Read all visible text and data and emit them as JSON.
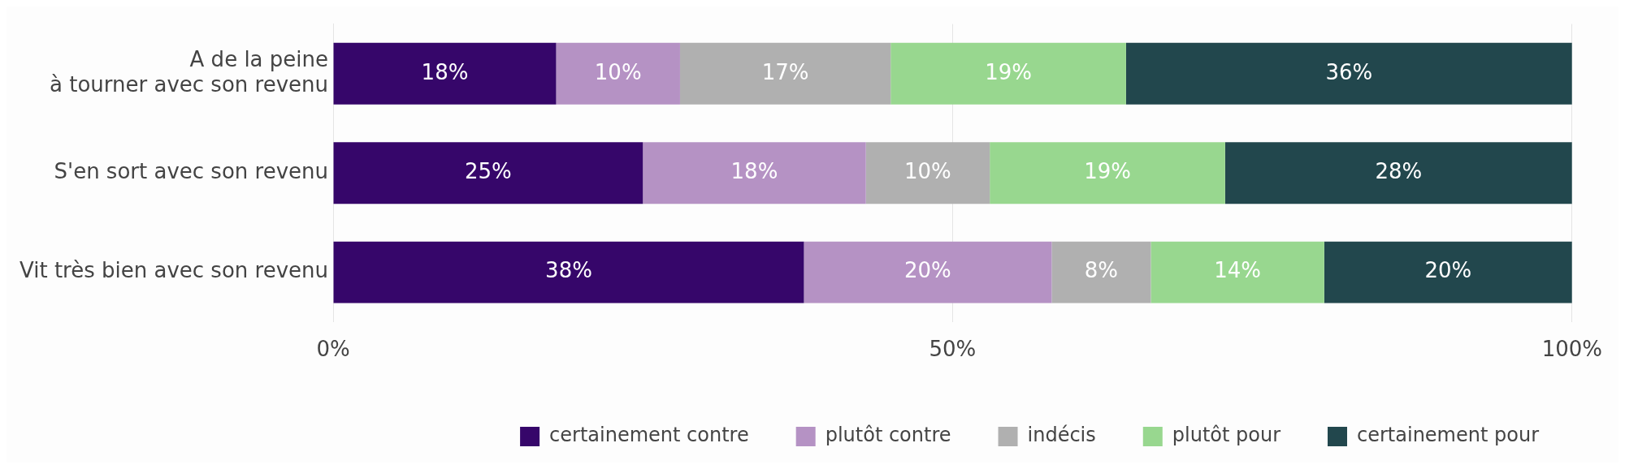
{
  "chart_data": {
    "type": "bar",
    "orientation": "horizontal",
    "stacked": true,
    "categories": [
      "A de la peine\nà tourner avec son revenu",
      "S'en sort avec son revenu",
      "Vit très bien avec son revenu"
    ],
    "series": [
      {
        "name": "certainement contre",
        "color": "#36066a",
        "values": [
          18,
          25,
          38
        ],
        "value_labels": [
          "18%",
          "25%",
          "38%"
        ]
      },
      {
        "name": "plutôt contre",
        "color": "#b592c4",
        "values": [
          10,
          18,
          20
        ],
        "value_labels": [
          "10%",
          "18%",
          "20%"
        ]
      },
      {
        "name": "indécis",
        "color": "#b0b0b0",
        "values": [
          17,
          10,
          8
        ],
        "value_labels": [
          "17%",
          "10%",
          "8%"
        ]
      },
      {
        "name": "plutôt pour",
        "color": "#98d78f",
        "values": [
          19,
          19,
          14
        ],
        "value_labels": [
          "19%",
          "19%",
          "14%"
        ]
      },
      {
        "name": "certainement pour",
        "color": "#22474d",
        "values": [
          36,
          28,
          20
        ],
        "value_labels": [
          "36%",
          "28%",
          "20%"
        ]
      }
    ],
    "xlim": [
      0,
      100
    ],
    "xticks": [
      {
        "value": 0,
        "label": "0%"
      },
      {
        "value": 50,
        "label": "50%"
      },
      {
        "value": 100,
        "label": "100%"
      }
    ],
    "grid": "x",
    "legend": "bottom"
  }
}
